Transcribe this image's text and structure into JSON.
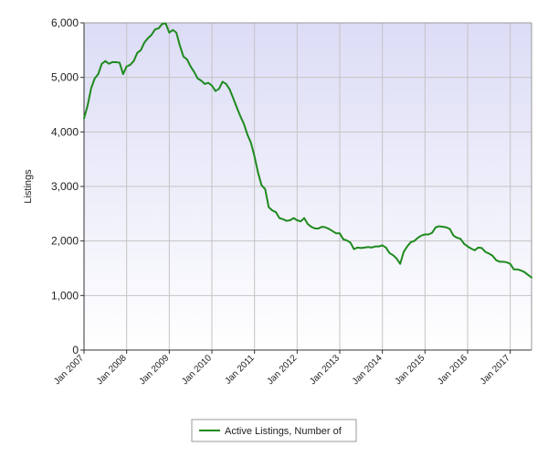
{
  "chart_data": {
    "type": "line",
    "ylabel": "Listings",
    "ylim": [
      0,
      6000
    ],
    "yticks": [
      "0",
      "1,000",
      "2,000",
      "3,000",
      "4,000",
      "5,000",
      "6,000"
    ],
    "ytick_values": [
      0,
      1000,
      2000,
      3000,
      4000,
      5000,
      6000
    ],
    "xlim": [
      "2007-01",
      "2017-07"
    ],
    "xticks": [
      "Jan 2007",
      "Jan 2008",
      "Jan 2009",
      "Jan 2010",
      "Jan 2011",
      "Jan 2012",
      "Jan 2013",
      "Jan 2014",
      "Jan 2015",
      "Jan 2016",
      "Jan 2017"
    ],
    "xtick_dates": [
      "2007-01",
      "2008-01",
      "2009-01",
      "2010-01",
      "2011-01",
      "2012-01",
      "2013-01",
      "2014-01",
      "2015-01",
      "2016-01",
      "2017-01"
    ],
    "grid": true,
    "legend_position": "bottom-center",
    "colors": {
      "plot_top": "#dcdcf6",
      "plot_bottom": "#ffffff",
      "line": "#1e8a1e",
      "grid": "#c4c4c4"
    },
    "series": [
      {
        "name": "Active Listings, Number of",
        "x": [
          "2007-01",
          "2007-02",
          "2007-03",
          "2007-04",
          "2007-05",
          "2007-06",
          "2007-07",
          "2007-08",
          "2007-09",
          "2007-10",
          "2007-11",
          "2007-12",
          "2008-01",
          "2008-02",
          "2008-03",
          "2008-04",
          "2008-05",
          "2008-06",
          "2008-07",
          "2008-08",
          "2008-09",
          "2008-10",
          "2008-11",
          "2008-12",
          "2009-01",
          "2009-02",
          "2009-03",
          "2009-04",
          "2009-05",
          "2009-06",
          "2009-07",
          "2009-08",
          "2009-09",
          "2009-10",
          "2009-11",
          "2009-12",
          "2010-01",
          "2010-02",
          "2010-03",
          "2010-04",
          "2010-05",
          "2010-06",
          "2010-07",
          "2010-08",
          "2010-09",
          "2010-10",
          "2010-11",
          "2010-12",
          "2011-01",
          "2011-02",
          "2011-03",
          "2011-04",
          "2011-05",
          "2011-06",
          "2011-07",
          "2011-08",
          "2011-09",
          "2011-10",
          "2011-11",
          "2011-12",
          "2012-01",
          "2012-02",
          "2012-03",
          "2012-04",
          "2012-05",
          "2012-06",
          "2012-07",
          "2012-08",
          "2012-09",
          "2012-10",
          "2012-11",
          "2012-12",
          "2013-01",
          "2013-02",
          "2013-03",
          "2013-04",
          "2013-05",
          "2013-06",
          "2013-07",
          "2013-08",
          "2013-09",
          "2013-10",
          "2013-11",
          "2013-12",
          "2014-01",
          "2014-02",
          "2014-03",
          "2014-04",
          "2014-05",
          "2014-06",
          "2014-07",
          "2014-08",
          "2014-09",
          "2014-10",
          "2014-11",
          "2014-12",
          "2015-01",
          "2015-02",
          "2015-03",
          "2015-04",
          "2015-05",
          "2015-06",
          "2015-07",
          "2015-08",
          "2015-09",
          "2015-10",
          "2015-11",
          "2015-12",
          "2016-01",
          "2016-02",
          "2016-03",
          "2016-04",
          "2016-05",
          "2016-06",
          "2016-07",
          "2016-08",
          "2016-09",
          "2016-10",
          "2016-11",
          "2016-12",
          "2017-01",
          "2017-02",
          "2017-03",
          "2017-04",
          "2017-05",
          "2017-06",
          "2017-07"
        ],
        "values": [
          4250,
          4480,
          4800,
          4980,
          5060,
          5250,
          5300,
          5250,
          5280,
          5280,
          5270,
          5060,
          5200,
          5230,
          5300,
          5450,
          5500,
          5640,
          5720,
          5780,
          5880,
          5900,
          5980,
          5990,
          5820,
          5870,
          5820,
          5580,
          5380,
          5330,
          5200,
          5100,
          4980,
          4940,
          4880,
          4900,
          4850,
          4750,
          4790,
          4920,
          4880,
          4780,
          4620,
          4450,
          4290,
          4150,
          3950,
          3800,
          3550,
          3250,
          3020,
          2950,
          2620,
          2560,
          2530,
          2420,
          2400,
          2370,
          2380,
          2420,
          2380,
          2360,
          2420,
          2310,
          2260,
          2230,
          2230,
          2260,
          2250,
          2220,
          2180,
          2140,
          2140,
          2030,
          2010,
          1970,
          1850,
          1880,
          1870,
          1880,
          1890,
          1880,
          1900,
          1900,
          1920,
          1880,
          1780,
          1740,
          1680,
          1580,
          1800,
          1900,
          1980,
          2000,
          2060,
          2100,
          2120,
          2120,
          2150,
          2250,
          2270,
          2260,
          2250,
          2220,
          2100,
          2060,
          2040,
          1950,
          1900,
          1860,
          1830,
          1880,
          1870,
          1800,
          1770,
          1730,
          1650,
          1620,
          1620,
          1610,
          1580,
          1480,
          1480,
          1460,
          1430,
          1380,
          1330
        ]
      }
    ]
  }
}
